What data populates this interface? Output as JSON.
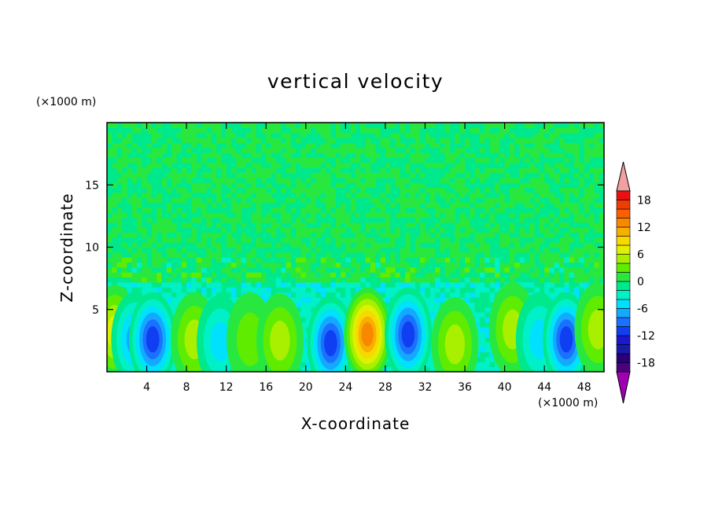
{
  "chart_data": {
    "type": "heatmap",
    "title": "vertical velocity",
    "xlabel": "X-coordinate",
    "ylabel": "Z-coordinate",
    "x_unit": "(×1000 m)",
    "y_unit": "(×1000 m)",
    "xlim": [
      0,
      50
    ],
    "ylim": [
      0,
      20
    ],
    "x_ticks": [
      "4",
      "8",
      "12",
      "16",
      "20",
      "24",
      "28",
      "32",
      "36",
      "40",
      "44",
      "48"
    ],
    "y_ticks": [
      "5",
      "10",
      "15"
    ],
    "colorbar": {
      "ticks": [
        "18",
        "12",
        "6",
        "0",
        "-6",
        "-12",
        "-18"
      ],
      "levels": [
        -20,
        -18,
        -16,
        -14,
        -12,
        -10,
        -8,
        -6,
        -4,
        -2,
        0,
        2,
        4,
        6,
        8,
        10,
        12,
        14,
        16,
        18,
        20
      ],
      "colors": [
        "#4a0080",
        "#28007e",
        "#1a1aa8",
        "#1818d0",
        "#0f3ff0",
        "#1a70ff",
        "#14a8ff",
        "#00e0ff",
        "#00f0c8",
        "#00e88c",
        "#28e840",
        "#60ec00",
        "#a8f000",
        "#e0f000",
        "#f8d800",
        "#f8b000",
        "#f88800",
        "#f86000",
        "#f03c00",
        "#e81010"
      ],
      "over_color": "#f4a0a0",
      "under_color": "#a000b0"
    },
    "features": [
      {
        "x": 0.8,
        "z": 3.2,
        "value": 7
      },
      {
        "x": 2.8,
        "z": 2.6,
        "value": -8
      },
      {
        "x": 4.6,
        "z": 2.6,
        "value": -11
      },
      {
        "x": 8.8,
        "z": 2.6,
        "value": 6
      },
      {
        "x": 11.4,
        "z": 2.4,
        "value": -6
      },
      {
        "x": 14.4,
        "z": 2.6,
        "value": 4
      },
      {
        "x": 17.4,
        "z": 2.5,
        "value": 6
      },
      {
        "x": 22.5,
        "z": 2.3,
        "value": -12
      },
      {
        "x": 26.2,
        "z": 3.0,
        "value": 13
      },
      {
        "x": 30.3,
        "z": 3.0,
        "value": -11
      },
      {
        "x": 35.0,
        "z": 2.2,
        "value": 6
      },
      {
        "x": 40.8,
        "z": 3.4,
        "value": 5
      },
      {
        "x": 43.5,
        "z": 2.6,
        "value": -6
      },
      {
        "x": 46.2,
        "z": 2.6,
        "value": -12
      },
      {
        "x": 49.4,
        "z": 3.4,
        "value": 5
      }
    ],
    "background": {
      "z_0_to_7": -3,
      "z_7_to_20": 0
    }
  }
}
